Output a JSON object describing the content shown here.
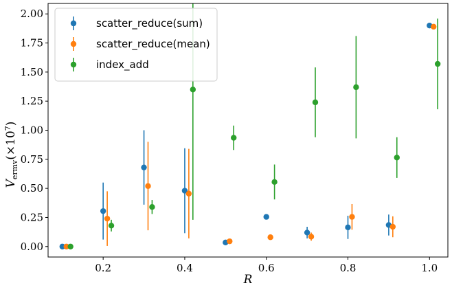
{
  "chart_data": {
    "type": "scatter",
    "xlabel": "R",
    "ylabel": "V_ermv (×10^7)",
    "xlim": [
      0.065,
      1.045
    ],
    "ylim": [
      -0.09,
      2.09
    ],
    "xticks": [
      0.2,
      0.4,
      0.6,
      0.8,
      1.0
    ],
    "xtick_labels": [
      "0.2",
      "0.4",
      "0.6",
      "0.8",
      "1.0"
    ],
    "yticks": [
      0.0,
      0.25,
      0.5,
      0.75,
      1.0,
      1.25,
      1.5,
      1.75,
      2.0
    ],
    "ytick_labels": [
      "0.00",
      "0.25",
      "0.50",
      "0.75",
      "1.00",
      "1.25",
      "1.50",
      "1.75",
      "2.00"
    ],
    "legend_position": "top-left",
    "grid": false,
    "series": [
      {
        "name": "scatter_reduce(sum)",
        "color": "#1f77b4",
        "points": [
          {
            "x": 0.1,
            "y": 0.0,
            "err": 0.0
          },
          {
            "x": 0.2,
            "y": 0.305,
            "err": 0.245
          },
          {
            "x": 0.3,
            "y": 0.68,
            "err": 0.32
          },
          {
            "x": 0.4,
            "y": 0.48,
            "err": 0.365
          },
          {
            "x": 0.5,
            "y": 0.035,
            "err": 0.0
          },
          {
            "x": 0.6,
            "y": 0.255,
            "err": 0.0
          },
          {
            "x": 0.7,
            "y": 0.12,
            "err": 0.05
          },
          {
            "x": 0.8,
            "y": 0.165,
            "err": 0.1
          },
          {
            "x": 0.9,
            "y": 0.185,
            "err": 0.09
          },
          {
            "x": 1.0,
            "y": 1.9,
            "err": 0.0
          }
        ]
      },
      {
        "name": "scatter_reduce(mean)",
        "color": "#ff7f0e",
        "points": [
          {
            "x": 0.11,
            "y": 0.0,
            "err": 0.0
          },
          {
            "x": 0.21,
            "y": 0.24,
            "err": 0.235
          },
          {
            "x": 0.31,
            "y": 0.52,
            "err": 0.38
          },
          {
            "x": 0.41,
            "y": 0.455,
            "err": 0.385
          },
          {
            "x": 0.51,
            "y": 0.045,
            "err": 0.0
          },
          {
            "x": 0.61,
            "y": 0.08,
            "err": 0.0
          },
          {
            "x": 0.71,
            "y": 0.085,
            "err": 0.035
          },
          {
            "x": 0.81,
            "y": 0.255,
            "err": 0.11
          },
          {
            "x": 0.91,
            "y": 0.17,
            "err": 0.09
          },
          {
            "x": 1.01,
            "y": 1.89,
            "err": 0.0
          }
        ]
      },
      {
        "name": "index_add",
        "color": "#2ca02c",
        "points": [
          {
            "x": 0.12,
            "y": 0.0,
            "err": 0.0
          },
          {
            "x": 0.22,
            "y": 0.18,
            "err": 0.05
          },
          {
            "x": 0.32,
            "y": 0.34,
            "err": 0.06
          },
          {
            "x": 0.42,
            "y": 1.35,
            "err": 1.12
          },
          {
            "x": 0.52,
            "y": 0.935,
            "err": 0.105
          },
          {
            "x": 0.62,
            "y": 0.555,
            "err": 0.15
          },
          {
            "x": 0.72,
            "y": 1.24,
            "err": 0.3
          },
          {
            "x": 0.82,
            "y": 1.37,
            "err": 0.44
          },
          {
            "x": 0.92,
            "y": 0.765,
            "err": 0.175
          },
          {
            "x": 1.02,
            "y": 1.57,
            "err": 0.39
          }
        ]
      }
    ]
  }
}
